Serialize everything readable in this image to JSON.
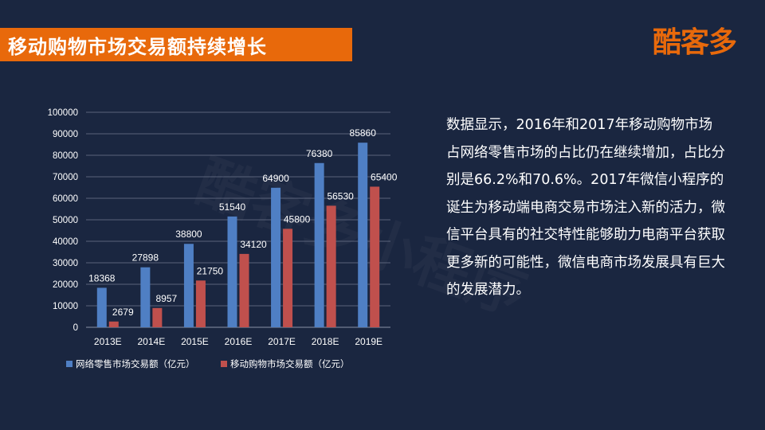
{
  "header": {
    "title": "移动购物市场交易额持续增长",
    "logo": "酷客多",
    "watermark": "酷客多小程序"
  },
  "description": "数据显示，2016年和2017年移动购物市场占网络零售市场的占比仍在继续增加，占比分别是66.2%和70.6%。2017年微信小程序的诞生为移动端电商交易市场注入新的活力，微信平台具有的社交特性能够助力电商平台获取更多新的可能性，微信电商市场发展具有巨大的发展潜力。",
  "chart_data": {
    "type": "bar",
    "categories": [
      "2013E",
      "2014E",
      "2015E",
      "2016E",
      "2017E",
      "2018E",
      "2019E"
    ],
    "series": [
      {
        "name": "网络零售市场交易额（亿元）",
        "values": [
          18368,
          27898,
          38800,
          51540,
          64900,
          76380,
          85860
        ],
        "color": "#4f7fc4"
      },
      {
        "name": "移动购物市场交易额（亿元）",
        "values": [
          2679,
          8957,
          21750,
          34120,
          45800,
          56530,
          65400
        ],
        "color": "#c0504d"
      }
    ],
    "title": "",
    "xlabel": "",
    "ylabel": "",
    "ylim": [
      0,
      100000
    ],
    "yticks": [
      0,
      10000,
      20000,
      30000,
      40000,
      50000,
      60000,
      70000,
      80000,
      90000,
      100000
    ],
    "grid": true,
    "legend": "bottom"
  }
}
